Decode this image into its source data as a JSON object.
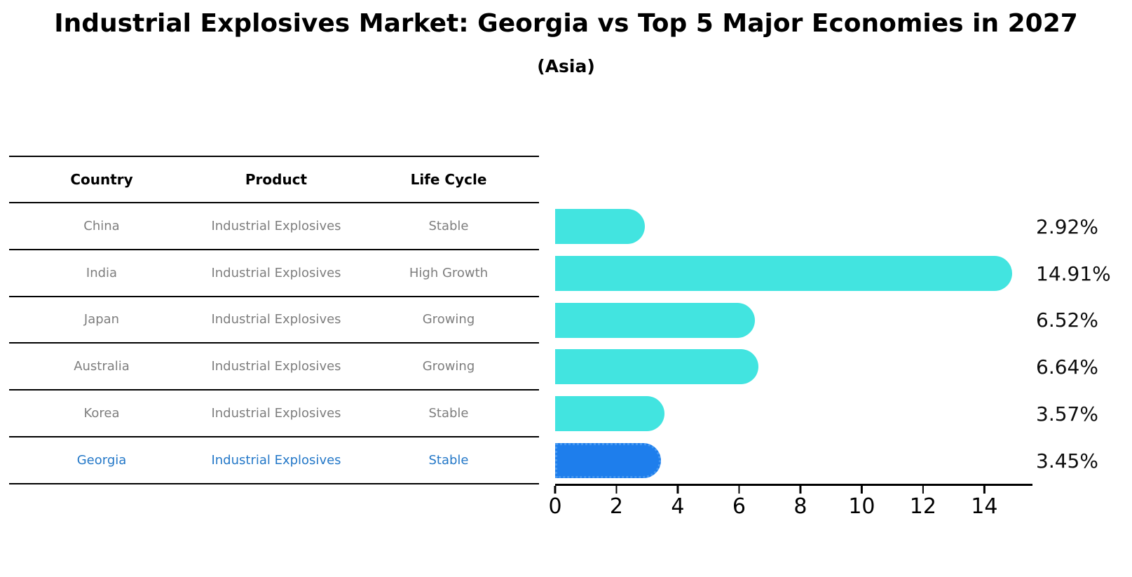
{
  "title": "Industrial Explosives Market: Georgia vs Top 5 Major Economies in 2027",
  "subtitle": "(Asia)",
  "table": {
    "headers": [
      "Country",
      "Product",
      "Life Cycle"
    ],
    "rows": [
      {
        "country": "China",
        "product": "Industrial Explosives",
        "life_cycle": "Stable"
      },
      {
        "country": "India",
        "product": "Industrial Explosives",
        "life_cycle": "High Growth"
      },
      {
        "country": "Japan",
        "product": "Industrial Explosives",
        "life_cycle": "Growing"
      },
      {
        "country": "Australia",
        "product": "Industrial Explosives",
        "life_cycle": "Growing"
      },
      {
        "country": "Korea",
        "product": "Industrial Explosives",
        "life_cycle": "Stable"
      },
      {
        "country": "Georgia",
        "product": "Industrial Explosives",
        "life_cycle": "Stable",
        "highlight": true
      }
    ]
  },
  "chart_data": {
    "type": "bar",
    "orientation": "horizontal",
    "title": "Industrial Explosives Market: Georgia vs Top 5 Major Economies in 2027",
    "subtitle": "(Asia)",
    "categories": [
      "China",
      "India",
      "Japan",
      "Australia",
      "Korea",
      "Georgia"
    ],
    "values": [
      2.92,
      14.91,
      6.52,
      6.64,
      3.57,
      3.45
    ],
    "value_labels": [
      "2.92%",
      "14.91%",
      "6.52%",
      "6.64%",
      "3.57%",
      "3.45%"
    ],
    "xticks": [
      0,
      2,
      4,
      6,
      8,
      10,
      12,
      14
    ],
    "xlim": [
      0,
      15.5
    ],
    "grid": false,
    "legend": false,
    "bar_color": "#42e4e0",
    "highlight_color": "#1e7eec",
    "highlight_index": 5,
    "highlight_text_color": "#2478c8"
  }
}
